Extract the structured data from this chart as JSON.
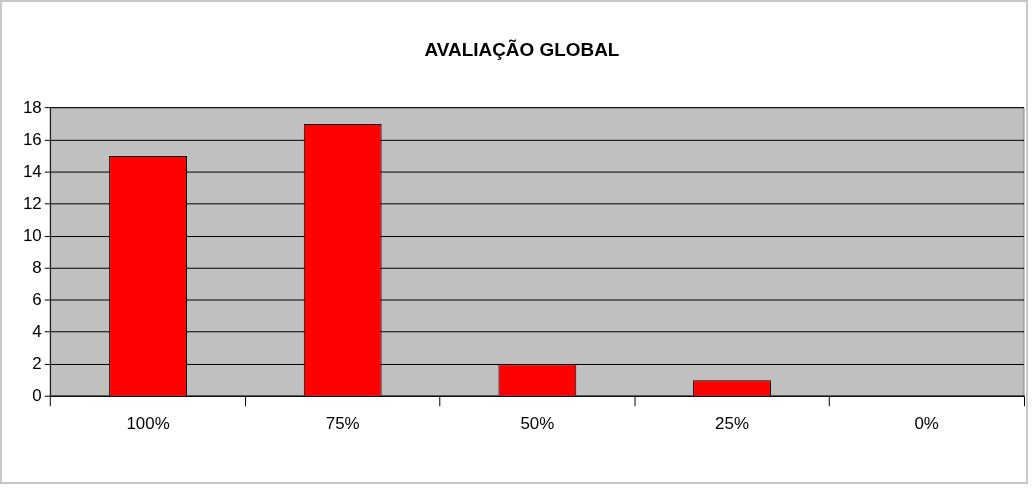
{
  "chart_data": {
    "type": "bar",
    "title": "AVALIAÇÃO GLOBAL",
    "categories": [
      "100%",
      "75%",
      "50%",
      "25%",
      "0%"
    ],
    "values": [
      15,
      17,
      2,
      1,
      0
    ],
    "color": "#ff0000",
    "ylim": [
      0,
      18
    ],
    "yticks": [
      0,
      2,
      4,
      6,
      8,
      10,
      12,
      14,
      16,
      18
    ],
    "grid": "y",
    "legend": false
  }
}
